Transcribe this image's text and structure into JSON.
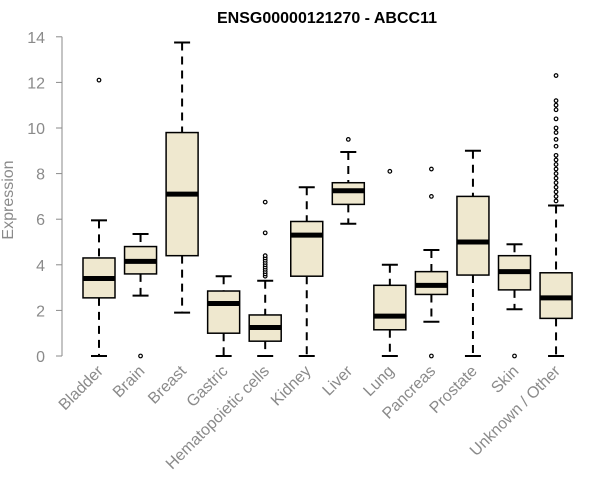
{
  "chart_data": {
    "type": "boxplot",
    "title": "ENSG00000121270 - ABCC11",
    "ylabel": "Expression",
    "xlabel": "",
    "ylim": [
      0,
      14
    ],
    "yticks": [
      0,
      2,
      4,
      6,
      8,
      10,
      12,
      14
    ],
    "grid": false,
    "colors": {
      "box_fill": "#efe8cf",
      "box_stroke": "#000000",
      "axis": "#8a8a8a"
    },
    "categories": [
      "Bladder",
      "Brain",
      "Breast",
      "Gastric",
      "Hematopoietic cells",
      "Kidney",
      "Liver",
      "Lung",
      "Pancreas",
      "Prostate",
      "Skin",
      "Unknown / Other"
    ],
    "boxes": [
      {
        "category": "Bladder",
        "whisker_low": 0.0,
        "q1": 2.55,
        "median": 3.4,
        "q3": 4.3,
        "whisker_high": 5.95,
        "outliers": [
          12.1
        ]
      },
      {
        "category": "Brain",
        "whisker_low": 2.65,
        "q1": 3.6,
        "median": 4.15,
        "q3": 4.8,
        "whisker_high": 5.35,
        "outliers": [
          0.0
        ]
      },
      {
        "category": "Breast",
        "whisker_low": 1.9,
        "q1": 4.4,
        "median": 7.1,
        "q3": 9.8,
        "whisker_high": 13.75,
        "outliers": []
      },
      {
        "category": "Gastric",
        "whisker_low": 0.0,
        "q1": 1.0,
        "median": 2.3,
        "q3": 2.85,
        "whisker_high": 3.5,
        "outliers": []
      },
      {
        "category": "Hematopoietic cells",
        "whisker_low": 0.0,
        "q1": 0.65,
        "median": 1.25,
        "q3": 1.8,
        "whisker_high": 3.3,
        "outliers": [
          3.5,
          3.6,
          3.7,
          3.8,
          3.9,
          4.0,
          4.1,
          4.2,
          4.3,
          4.4,
          5.4,
          6.75
        ]
      },
      {
        "category": "Kidney",
        "whisker_low": 0.0,
        "q1": 3.5,
        "median": 5.3,
        "q3": 5.9,
        "whisker_high": 7.4,
        "outliers": []
      },
      {
        "category": "Liver",
        "whisker_low": 5.8,
        "q1": 6.65,
        "median": 7.25,
        "q3": 7.6,
        "whisker_high": 8.95,
        "outliers": [
          9.5
        ]
      },
      {
        "category": "Lung",
        "whisker_low": 0.0,
        "q1": 1.15,
        "median": 1.75,
        "q3": 3.1,
        "whisker_high": 4.0,
        "outliers": [
          8.1
        ]
      },
      {
        "category": "Pancreas",
        "whisker_low": 1.5,
        "q1": 2.7,
        "median": 3.1,
        "q3": 3.7,
        "whisker_high": 4.65,
        "outliers": [
          0.0,
          7.0,
          8.2
        ]
      },
      {
        "category": "Prostate",
        "whisker_low": 0.0,
        "q1": 3.55,
        "median": 5.0,
        "q3": 7.0,
        "whisker_high": 9.0,
        "outliers": []
      },
      {
        "category": "Skin",
        "whisker_low": 2.05,
        "q1": 2.9,
        "median": 3.7,
        "q3": 4.4,
        "whisker_high": 4.9,
        "outliers": [
          0.0
        ]
      },
      {
        "category": "Unknown / Other",
        "whisker_low": 0.0,
        "q1": 1.65,
        "median": 2.55,
        "q3": 3.65,
        "whisker_high": 6.6,
        "outliers": [
          6.8,
          7.0,
          7.2,
          7.4,
          7.6,
          7.8,
          8.0,
          8.2,
          8.4,
          8.6,
          8.8,
          9.2,
          9.5,
          9.8,
          10.0,
          10.4,
          10.8,
          11.0,
          11.2,
          12.3
        ]
      }
    ]
  }
}
